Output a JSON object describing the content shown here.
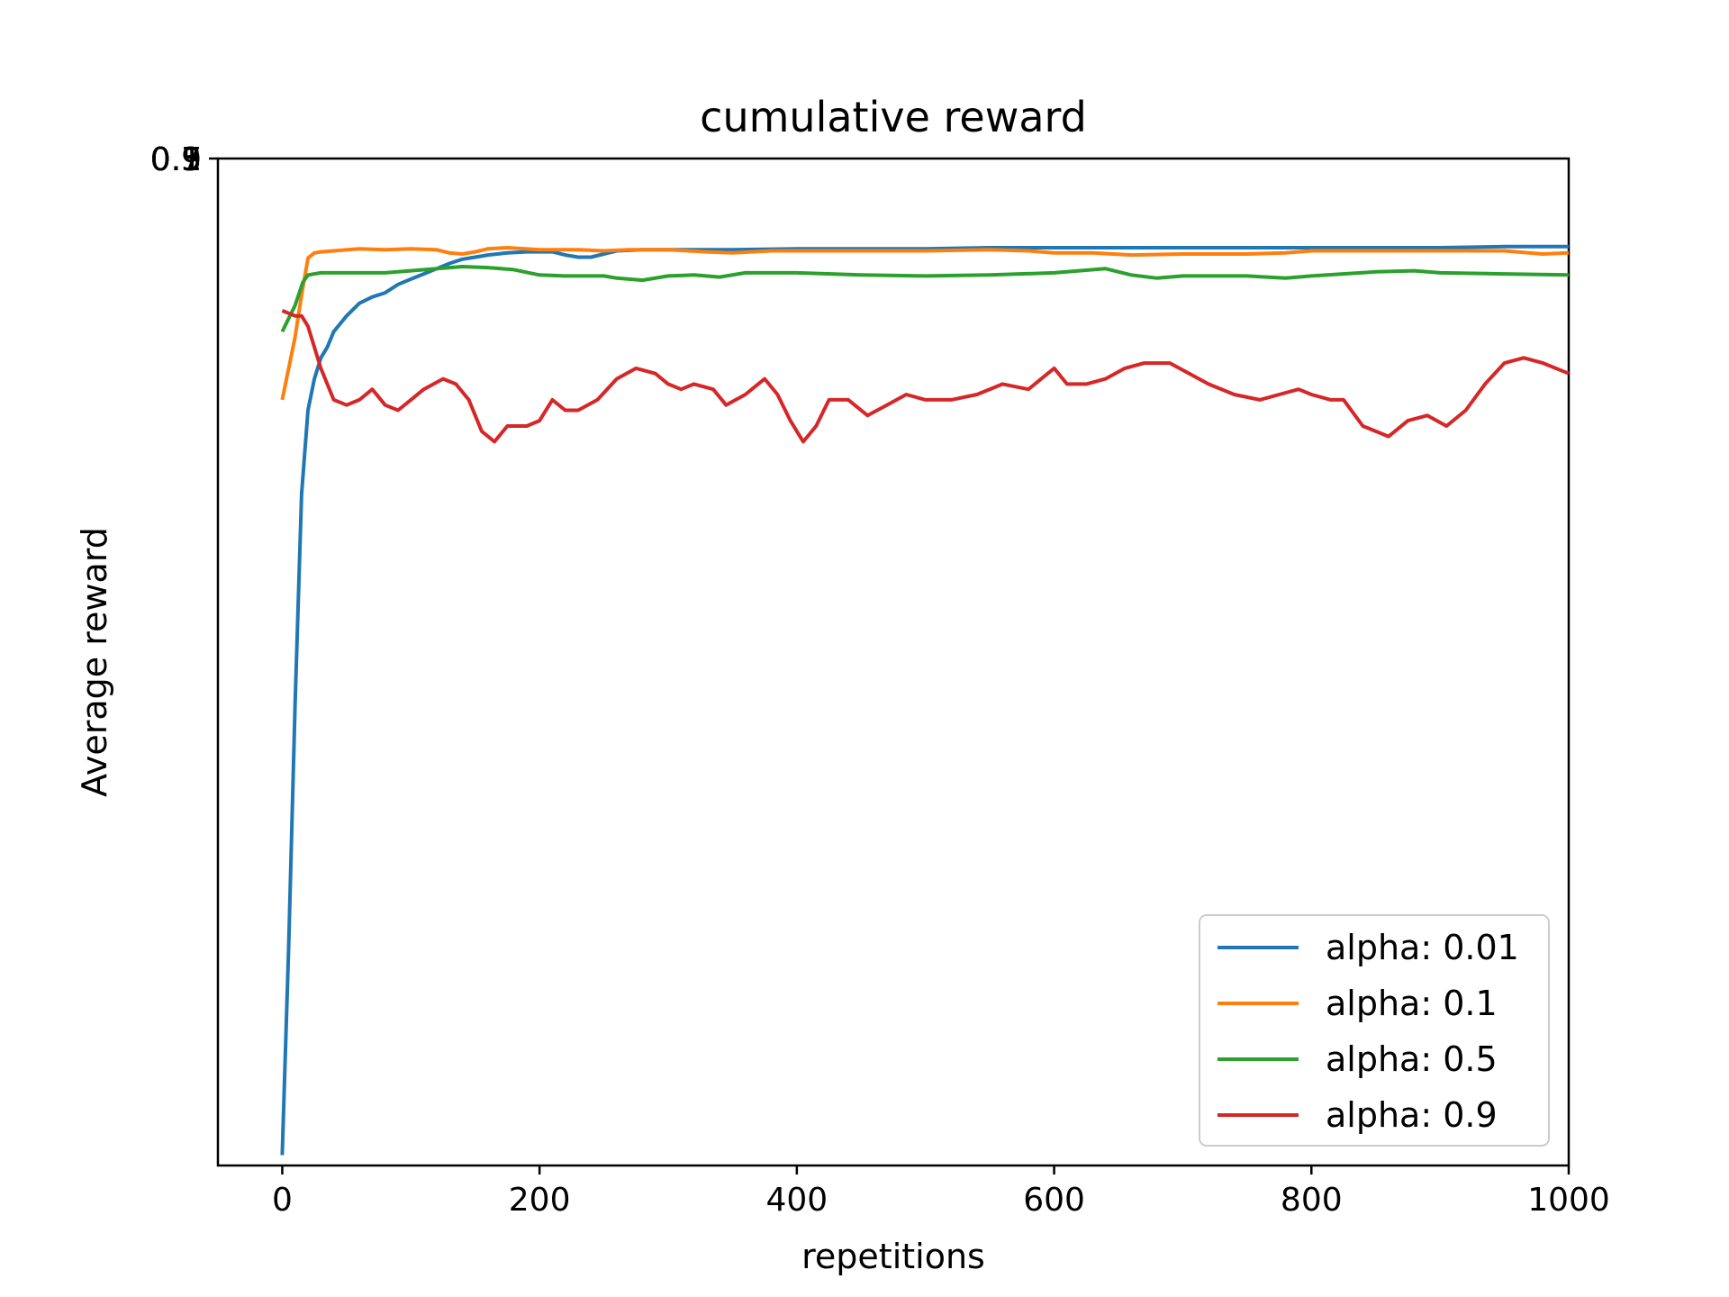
{
  "chart_data": {
    "type": "line",
    "title": "cumulative reward",
    "xlabel": "repetitions",
    "ylabel": "Average reward",
    "xlim": [
      -50,
      1000
    ],
    "x_ticks": [
      0,
      200,
      400,
      600,
      800,
      1000
    ],
    "y_tick_labels_overlapping": [
      "0.1",
      "0.3",
      "0.5",
      "0.7",
      "0.9",
      "1"
    ],
    "grid": false,
    "legend_position": "lower-right",
    "series": [
      {
        "name": "alpha: 0.01",
        "color": "#1f77b4",
        "points": [
          [
            0,
            0.05
          ],
          [
            5,
            0.25
          ],
          [
            10,
            0.48
          ],
          [
            15,
            0.68
          ],
          [
            20,
            0.76
          ],
          [
            25,
            0.79
          ],
          [
            30,
            0.81
          ],
          [
            35,
            0.82
          ],
          [
            40,
            0.835
          ],
          [
            50,
            0.85
          ],
          [
            60,
            0.862
          ],
          [
            70,
            0.868
          ],
          [
            80,
            0.872
          ],
          [
            90,
            0.88
          ],
          [
            100,
            0.885
          ],
          [
            110,
            0.89
          ],
          [
            120,
            0.895
          ],
          [
            130,
            0.9
          ],
          [
            140,
            0.904
          ],
          [
            150,
            0.906
          ],
          [
            160,
            0.908
          ],
          [
            175,
            0.91
          ],
          [
            190,
            0.911
          ],
          [
            210,
            0.911
          ],
          [
            220,
            0.908
          ],
          [
            230,
            0.906
          ],
          [
            240,
            0.906
          ],
          [
            250,
            0.909
          ],
          [
            260,
            0.912
          ],
          [
            280,
            0.913
          ],
          [
            300,
            0.913
          ],
          [
            350,
            0.913
          ],
          [
            400,
            0.914
          ],
          [
            450,
            0.914
          ],
          [
            500,
            0.914
          ],
          [
            550,
            0.915
          ],
          [
            600,
            0.915
          ],
          [
            650,
            0.915
          ],
          [
            700,
            0.915
          ],
          [
            750,
            0.915
          ],
          [
            800,
            0.915
          ],
          [
            850,
            0.915
          ],
          [
            900,
            0.915
          ],
          [
            950,
            0.916
          ],
          [
            1000,
            0.916
          ]
        ]
      },
      {
        "name": "alpha: 0.1",
        "color": "#ff7f0e",
        "points": [
          [
            0,
            0.77
          ],
          [
            5,
            0.8
          ],
          [
            10,
            0.83
          ],
          [
            15,
            0.87
          ],
          [
            20,
            0.905
          ],
          [
            25,
            0.91
          ],
          [
            30,
            0.911
          ],
          [
            40,
            0.912
          ],
          [
            60,
            0.914
          ],
          [
            80,
            0.913
          ],
          [
            100,
            0.914
          ],
          [
            120,
            0.913
          ],
          [
            130,
            0.91
          ],
          [
            140,
            0.909
          ],
          [
            150,
            0.911
          ],
          [
            160,
            0.914
          ],
          [
            175,
            0.915
          ],
          [
            200,
            0.913
          ],
          [
            230,
            0.913
          ],
          [
            250,
            0.912
          ],
          [
            270,
            0.913
          ],
          [
            300,
            0.913
          ],
          [
            330,
            0.911
          ],
          [
            350,
            0.91
          ],
          [
            380,
            0.912
          ],
          [
            400,
            0.912
          ],
          [
            450,
            0.912
          ],
          [
            500,
            0.912
          ],
          [
            550,
            0.913
          ],
          [
            580,
            0.912
          ],
          [
            600,
            0.91
          ],
          [
            630,
            0.91
          ],
          [
            660,
            0.908
          ],
          [
            700,
            0.909
          ],
          [
            750,
            0.909
          ],
          [
            780,
            0.91
          ],
          [
            800,
            0.912
          ],
          [
            850,
            0.912
          ],
          [
            900,
            0.912
          ],
          [
            950,
            0.912
          ],
          [
            980,
            0.909
          ],
          [
            1000,
            0.91
          ]
        ]
      },
      {
        "name": "alpha: 0.5",
        "color": "#2ca02c",
        "points": [
          [
            0,
            0.835
          ],
          [
            10,
            0.86
          ],
          [
            16,
            0.882
          ],
          [
            20,
            0.889
          ],
          [
            30,
            0.891
          ],
          [
            50,
            0.891
          ],
          [
            80,
            0.891
          ],
          [
            100,
            0.893
          ],
          [
            120,
            0.895
          ],
          [
            140,
            0.897
          ],
          [
            160,
            0.896
          ],
          [
            180,
            0.894
          ],
          [
            200,
            0.889
          ],
          [
            220,
            0.888
          ],
          [
            250,
            0.888
          ],
          [
            260,
            0.886
          ],
          [
            280,
            0.884
          ],
          [
            300,
            0.888
          ],
          [
            320,
            0.889
          ],
          [
            340,
            0.887
          ],
          [
            360,
            0.891
          ],
          [
            380,
            0.891
          ],
          [
            400,
            0.891
          ],
          [
            450,
            0.889
          ],
          [
            500,
            0.888
          ],
          [
            550,
            0.889
          ],
          [
            600,
            0.891
          ],
          [
            640,
            0.895
          ],
          [
            660,
            0.889
          ],
          [
            680,
            0.886
          ],
          [
            700,
            0.888
          ],
          [
            750,
            0.888
          ],
          [
            780,
            0.886
          ],
          [
            800,
            0.888
          ],
          [
            850,
            0.892
          ],
          [
            880,
            0.893
          ],
          [
            900,
            0.891
          ],
          [
            950,
            0.89
          ],
          [
            1000,
            0.889
          ]
        ]
      },
      {
        "name": "alpha: 0.9",
        "color": "#d62728",
        "points": [
          [
            0,
            0.855
          ],
          [
            10,
            0.85
          ],
          [
            15,
            0.85
          ],
          [
            20,
            0.84
          ],
          [
            30,
            0.8
          ],
          [
            40,
            0.77
          ],
          [
            50,
            0.765
          ],
          [
            60,
            0.77
          ],
          [
            70,
            0.78
          ],
          [
            80,
            0.765
          ],
          [
            90,
            0.76
          ],
          [
            100,
            0.77
          ],
          [
            110,
            0.78
          ],
          [
            125,
            0.79
          ],
          [
            135,
            0.785
          ],
          [
            145,
            0.77
          ],
          [
            155,
            0.74
          ],
          [
            165,
            0.73
          ],
          [
            175,
            0.745
          ],
          [
            190,
            0.745
          ],
          [
            200,
            0.75
          ],
          [
            210,
            0.77
          ],
          [
            220,
            0.76
          ],
          [
            230,
            0.76
          ],
          [
            245,
            0.77
          ],
          [
            260,
            0.79
          ],
          [
            275,
            0.8
          ],
          [
            290,
            0.795
          ],
          [
            300,
            0.785
          ],
          [
            310,
            0.78
          ],
          [
            320,
            0.785
          ],
          [
            335,
            0.78
          ],
          [
            345,
            0.765
          ],
          [
            360,
            0.775
          ],
          [
            375,
            0.79
          ],
          [
            385,
            0.775
          ],
          [
            395,
            0.75
          ],
          [
            405,
            0.73
          ],
          [
            415,
            0.745
          ],
          [
            425,
            0.77
          ],
          [
            440,
            0.77
          ],
          [
            455,
            0.755
          ],
          [
            470,
            0.765
          ],
          [
            485,
            0.775
          ],
          [
            500,
            0.77
          ],
          [
            520,
            0.77
          ],
          [
            540,
            0.775
          ],
          [
            560,
            0.785
          ],
          [
            580,
            0.78
          ],
          [
            590,
            0.79
          ],
          [
            600,
            0.8
          ],
          [
            610,
            0.785
          ],
          [
            625,
            0.785
          ],
          [
            640,
            0.79
          ],
          [
            655,
            0.8
          ],
          [
            670,
            0.805
          ],
          [
            690,
            0.805
          ],
          [
            705,
            0.795
          ],
          [
            720,
            0.785
          ],
          [
            740,
            0.775
          ],
          [
            760,
            0.77
          ],
          [
            775,
            0.775
          ],
          [
            790,
            0.78
          ],
          [
            800,
            0.775
          ],
          [
            815,
            0.77
          ],
          [
            825,
            0.77
          ],
          [
            840,
            0.745
          ],
          [
            860,
            0.735
          ],
          [
            875,
            0.75
          ],
          [
            890,
            0.755
          ],
          [
            905,
            0.745
          ],
          [
            920,
            0.76
          ],
          [
            935,
            0.785
          ],
          [
            950,
            0.805
          ],
          [
            965,
            0.81
          ],
          [
            980,
            0.805
          ],
          [
            1000,
            0.795
          ]
        ]
      }
    ]
  }
}
